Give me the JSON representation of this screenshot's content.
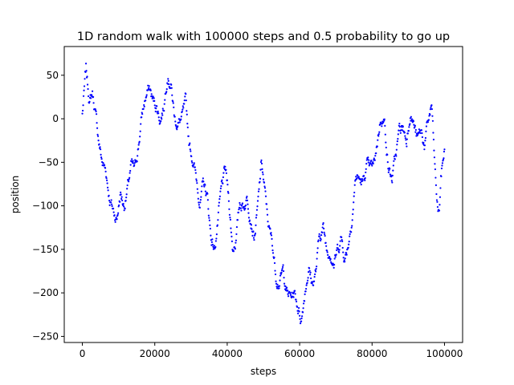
{
  "chart_data": {
    "type": "scatter",
    "title": "1D random walk with 100000 steps and 0.5 probability to go up",
    "xlabel": "steps",
    "ylabel": "position",
    "xlim": [
      -5000,
      105000
    ],
    "ylim": [
      -257,
      83
    ],
    "x_ticks": [
      0,
      20000,
      40000,
      60000,
      80000,
      100000
    ],
    "x_tick_labels": [
      "0",
      "20000",
      "40000",
      "60000",
      "80000",
      "100000"
    ],
    "y_ticks": [
      50,
      0,
      -50,
      -100,
      -150,
      -200,
      -250
    ],
    "y_tick_labels": [
      "50",
      "0",
      "−50",
      "−100",
      "−150",
      "−200",
      "−250"
    ],
    "grid": false,
    "legend": "none",
    "series_color": "#0000ff",
    "x_range": [
      0,
      100000
    ],
    "keypoints": [
      [
        0,
        5
      ],
      [
        1000,
        55
      ],
      [
        2000,
        20
      ],
      [
        2800,
        30
      ],
      [
        3500,
        10
      ],
      [
        4500,
        -25
      ],
      [
        5500,
        -50
      ],
      [
        6500,
        -60
      ],
      [
        7500,
        -90
      ],
      [
        8500,
        -105
      ],
      [
        9500,
        -115
      ],
      [
        10500,
        -85
      ],
      [
        11500,
        -100
      ],
      [
        12500,
        -80
      ],
      [
        13500,
        -55
      ],
      [
        14500,
        -60
      ],
      [
        15500,
        -30
      ],
      [
        16500,
        5
      ],
      [
        17500,
        25
      ],
      [
        18500,
        35
      ],
      [
        19500,
        20
      ],
      [
        20500,
        15
      ],
      [
        21500,
        0
      ],
      [
        22500,
        15
      ],
      [
        23500,
        55
      ],
      [
        24500,
        40
      ],
      [
        25500,
        0
      ],
      [
        26500,
        -5
      ],
      [
        27500,
        0
      ],
      [
        28500,
        15
      ],
      [
        29500,
        -30
      ],
      [
        30500,
        -45
      ],
      [
        31500,
        -70
      ],
      [
        32500,
        -95
      ],
      [
        33500,
        -75
      ],
      [
        34500,
        -90
      ],
      [
        35500,
        -135
      ],
      [
        36500,
        -150
      ],
      [
        37500,
        -115
      ],
      [
        38500,
        -80
      ],
      [
        39500,
        -60
      ],
      [
        40500,
        -95
      ],
      [
        41500,
        -150
      ],
      [
        42500,
        -135
      ],
      [
        43500,
        -95
      ],
      [
        44500,
        -100
      ],
      [
        45500,
        -90
      ],
      [
        46500,
        -110
      ],
      [
        47500,
        -135
      ],
      [
        48500,
        -100
      ],
      [
        49500,
        -50
      ],
      [
        50500,
        -90
      ],
      [
        51500,
        -125
      ],
      [
        52500,
        -145
      ],
      [
        53500,
        -180
      ],
      [
        54500,
        -185
      ],
      [
        55500,
        -175
      ],
      [
        56500,
        -200
      ],
      [
        57500,
        -205
      ],
      [
        58500,
        -200
      ],
      [
        59500,
        -215
      ],
      [
        60500,
        -230
      ],
      [
        61500,
        -195
      ],
      [
        62500,
        -170
      ],
      [
        63500,
        -190
      ],
      [
        64500,
        -175
      ],
      [
        65500,
        -135
      ],
      [
        66500,
        -125
      ],
      [
        67500,
        -150
      ],
      [
        68500,
        -150
      ],
      [
        69500,
        -165
      ],
      [
        70500,
        -150
      ],
      [
        71500,
        -135
      ],
      [
        72500,
        -160
      ],
      [
        73500,
        -140
      ],
      [
        74500,
        -110
      ],
      [
        75500,
        -65
      ],
      [
        76500,
        -70
      ],
      [
        77500,
        -75
      ],
      [
        78500,
        -55
      ],
      [
        79500,
        -60
      ],
      [
        80500,
        -55
      ],
      [
        81500,
        -25
      ],
      [
        82500,
        5
      ],
      [
        83500,
        -5
      ],
      [
        84500,
        -55
      ],
      [
        85500,
        -70
      ],
      [
        86500,
        -45
      ],
      [
        87500,
        -15
      ],
      [
        88500,
        -10
      ],
      [
        89500,
        -25
      ],
      [
        90500,
        10
      ],
      [
        91500,
        -5
      ],
      [
        92500,
        -25
      ],
      [
        93500,
        -15
      ],
      [
        94500,
        -30
      ],
      [
        95500,
        -5
      ],
      [
        96500,
        15
      ],
      [
        97000,
        -30
      ],
      [
        97500,
        -70
      ],
      [
        98000,
        -100
      ],
      [
        98500,
        -110
      ],
      [
        99000,
        -70
      ],
      [
        99500,
        -50
      ],
      [
        100000,
        -35
      ]
    ]
  }
}
